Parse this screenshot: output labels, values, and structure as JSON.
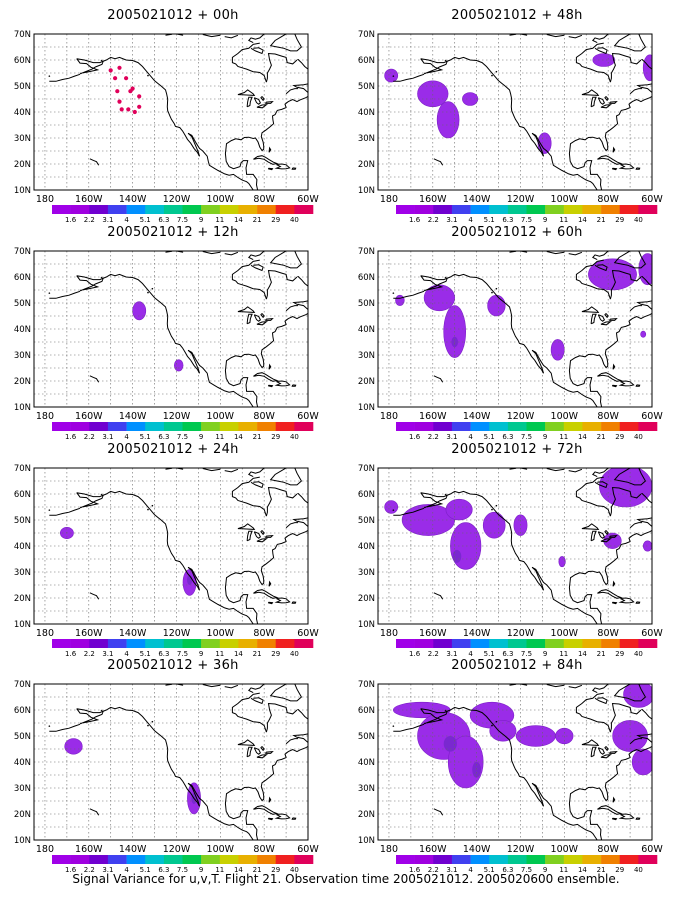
{
  "panels": [
    {
      "title": "2005021012 + 00h",
      "col": 0,
      "row": 0,
      "kind": "dots",
      "dots": [
        [
          -150,
          56
        ],
        [
          -148,
          53
        ],
        [
          -147,
          48
        ],
        [
          -146,
          44
        ],
        [
          -145,
          41
        ],
        [
          -142,
          41
        ],
        [
          -139,
          40
        ],
        [
          -137,
          42
        ],
        [
          -137,
          46
        ],
        [
          -140,
          49
        ],
        [
          -143,
          53
        ],
        [
          -146,
          57
        ],
        [
          -141,
          48
        ]
      ],
      "blobs": []
    },
    {
      "title": "2005021012 + 12h",
      "col": 0,
      "row": 1,
      "kind": "fill",
      "blobs": [
        {
          "c": [
            -137,
            47
          ],
          "r": [
            3,
            3.5
          ],
          "lvl": 0
        },
        {
          "c": [
            -119,
            26
          ],
          "r": [
            2,
            2.2
          ],
          "lvl": 0
        }
      ]
    },
    {
      "title": "2005021012 + 24h",
      "col": 0,
      "row": 2,
      "kind": "fill",
      "blobs": [
        {
          "c": [
            -170,
            45
          ],
          "r": [
            3,
            2.2
          ],
          "lvl": 0
        },
        {
          "c": [
            -114,
            26
          ],
          "r": [
            3,
            5
          ],
          "lvl": 0
        },
        {
          "c": [
            -114,
            27
          ],
          "r": [
            1.2,
            2
          ],
          "lvl": 1
        }
      ]
    },
    {
      "title": "2005021012 + 36h",
      "col": 0,
      "row": 3,
      "kind": "fill",
      "blobs": [
        {
          "c": [
            -167,
            46
          ],
          "r": [
            4,
            3
          ],
          "lvl": 0
        },
        {
          "c": [
            -112,
            26
          ],
          "r": [
            3,
            6
          ],
          "lvl": 0
        },
        {
          "c": [
            -112,
            26
          ],
          "r": [
            1.2,
            2.2
          ],
          "lvl": 1
        }
      ]
    },
    {
      "title": "2005021012 + 48h",
      "col": 1,
      "row": 0,
      "kind": "fill",
      "blobs": [
        {
          "c": [
            -179,
            54
          ],
          "r": [
            3,
            2.5
          ],
          "lvl": 0
        },
        {
          "c": [
            -160,
            47
          ],
          "r": [
            7,
            5
          ],
          "lvl": 0
        },
        {
          "c": [
            -153,
            37
          ],
          "r": [
            5,
            7
          ],
          "lvl": 0
        },
        {
          "c": [
            -143,
            45
          ],
          "r": [
            3.5,
            2.5
          ],
          "lvl": 0
        },
        {
          "c": [
            -109,
            28
          ],
          "r": [
            3,
            4
          ],
          "lvl": 0
        },
        {
          "c": [
            -82,
            60
          ],
          "r": [
            5,
            2.5
          ],
          "lvl": 0
        },
        {
          "c": [
            -61,
            57
          ],
          "r": [
            3,
            5
          ],
          "lvl": 0
        }
      ]
    },
    {
      "title": "2005021012 + 60h",
      "col": 1,
      "row": 1,
      "kind": "fill",
      "blobs": [
        {
          "c": [
            -175,
            51
          ],
          "r": [
            2,
            2
          ],
          "lvl": 0
        },
        {
          "c": [
            -157,
            52
          ],
          "r": [
            7,
            5
          ],
          "lvl": 0
        },
        {
          "c": [
            -150,
            39
          ],
          "r": [
            5,
            10
          ],
          "lvl": 0
        },
        {
          "c": [
            -150,
            35
          ],
          "r": [
            1.5,
            2
          ],
          "lvl": 1
        },
        {
          "c": [
            -131,
            49
          ],
          "r": [
            4,
            4
          ],
          "lvl": 0
        },
        {
          "c": [
            -103,
            32
          ],
          "r": [
            3,
            4
          ],
          "lvl": 0
        },
        {
          "c": [
            -78,
            61
          ],
          "r": [
            11,
            6
          ],
          "lvl": 0
        },
        {
          "c": [
            -62,
            63
          ],
          "r": [
            4,
            6
          ],
          "lvl": 0
        },
        {
          "c": [
            -64,
            38
          ],
          "r": [
            1.2,
            1.2
          ],
          "lvl": 0
        }
      ]
    },
    {
      "title": "2005021012 + 72h",
      "col": 1,
      "row": 2,
      "kind": "fill",
      "blobs": [
        {
          "c": [
            -179,
            55
          ],
          "r": [
            3,
            2.5
          ],
          "lvl": 0
        },
        {
          "c": [
            -162,
            50
          ],
          "r": [
            12,
            6
          ],
          "lvl": 0
        },
        {
          "c": [
            -148,
            54
          ],
          "r": [
            6,
            4
          ],
          "lvl": 0
        },
        {
          "c": [
            -145,
            40
          ],
          "r": [
            7,
            9
          ],
          "lvl": 0
        },
        {
          "c": [
            -149,
            36
          ],
          "r": [
            2,
            2.5
          ],
          "lvl": 1
        },
        {
          "c": [
            -132,
            48
          ],
          "r": [
            5,
            5
          ],
          "lvl": 0
        },
        {
          "c": [
            -120,
            48
          ],
          "r": [
            3,
            4
          ],
          "lvl": 0
        },
        {
          "c": [
            -101,
            34
          ],
          "r": [
            1.5,
            2
          ],
          "lvl": 0
        },
        {
          "c": [
            -72,
            63
          ],
          "r": [
            12,
            8
          ],
          "lvl": 0
        },
        {
          "c": [
            -78,
            42
          ],
          "r": [
            4,
            3
          ],
          "lvl": 0
        },
        {
          "c": [
            -62,
            40
          ],
          "r": [
            2,
            2
          ],
          "lvl": 0
        }
      ]
    },
    {
      "title": "2005021012 + 84h",
      "col": 1,
      "row": 3,
      "kind": "fill",
      "blobs": [
        {
          "c": [
            -165,
            60
          ],
          "r": [
            13,
            3
          ],
          "lvl": 0
        },
        {
          "c": [
            -155,
            50
          ],
          "r": [
            12,
            9
          ],
          "lvl": 0
        },
        {
          "c": [
            -145,
            40
          ],
          "r": [
            8,
            10
          ],
          "lvl": 0
        },
        {
          "c": [
            -152,
            47
          ],
          "r": [
            3,
            3
          ],
          "lvl": 1
        },
        {
          "c": [
            -140,
            37
          ],
          "r": [
            2,
            3
          ],
          "lvl": 1
        },
        {
          "c": [
            -133,
            58
          ],
          "r": [
            10,
            5
          ],
          "lvl": 0
        },
        {
          "c": [
            -128,
            52
          ],
          "r": [
            6,
            4
          ],
          "lvl": 0
        },
        {
          "c": [
            -113,
            50
          ],
          "r": [
            9,
            4
          ],
          "lvl": 0
        },
        {
          "c": [
            -100,
            50
          ],
          "r": [
            4,
            3
          ],
          "lvl": 0
        },
        {
          "c": [
            -66,
            66
          ],
          "r": [
            7,
            5
          ],
          "lvl": 0
        },
        {
          "c": [
            -70,
            50
          ],
          "r": [
            8,
            6
          ],
          "lvl": 0
        },
        {
          "c": [
            -64,
            40
          ],
          "r": [
            5,
            5
          ],
          "lvl": 0
        }
      ]
    }
  ],
  "axes": {
    "lon_ticks": [
      "180",
      "160W",
      "140W",
      "120W",
      "100W",
      "80W",
      "60W"
    ],
    "lat_ticks": [
      "10N",
      "20N",
      "30N",
      "40N",
      "50N",
      "60N",
      "70N"
    ]
  },
  "colorbar": {
    "labels": [
      "1.6",
      "2.2",
      "3.1",
      "4",
      "5.1",
      "6.3",
      "7.5",
      "9",
      "11",
      "14",
      "21",
      "29",
      "40"
    ],
    "colors": [
      "#9f00e0",
      "#7000d0",
      "#4040f0",
      "#0090ff",
      "#00c0d0",
      "#00c890",
      "#00c850",
      "#80d020",
      "#c8d000",
      "#e8b000",
      "#f08000",
      "#f02020",
      "#e0005a"
    ]
  },
  "fill_colors": {
    "base": "#9a2ce8",
    "strong": "#7a28d0",
    "dot": "#e0005a"
  },
  "footer": "Signal Variance for u,v,T. Flight 21. Observation time 2005021012. 2005020600 ensemble."
}
